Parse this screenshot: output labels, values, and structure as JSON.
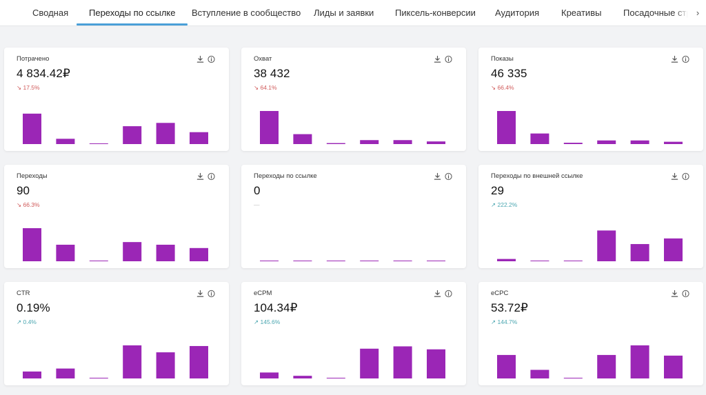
{
  "tabs": [
    {
      "label": "Сводная",
      "active": false
    },
    {
      "label": "Переходы по ссылке",
      "active": true
    },
    {
      "label": "Вступление в сообщество",
      "active": false
    },
    {
      "label": "Лиды и заявки",
      "active": false
    },
    {
      "label": "Пиксель-конверсии",
      "active": false
    },
    {
      "label": "Аудитория",
      "active": false
    },
    {
      "label": "Креативы",
      "active": false
    },
    {
      "label": "Посадочные стра",
      "active": false
    }
  ],
  "tab_next_glyph": "›",
  "colors": {
    "bar": "#9b26b6",
    "active_tab_underline": "#4a9fd8",
    "delta_down": "#d05a5a",
    "delta_up": "#4aa6b0"
  },
  "cards": [
    {
      "title": "Потрачено",
      "value": "4 834.42₽",
      "delta": "↘ 17.5%",
      "trend": "down",
      "bar_levels": [
        0.92,
        0.16,
        0.02,
        0.54,
        0.64,
        0.36
      ]
    },
    {
      "title": "Охват",
      "value": "38 432",
      "delta": "↘ 64.1%",
      "trend": "down",
      "bar_levels": [
        1.0,
        0.3,
        0.03,
        0.12,
        0.12,
        0.08
      ]
    },
    {
      "title": "Показы",
      "value": "46 335",
      "delta": "↘ 66.4%",
      "trend": "down",
      "bar_levels": [
        1.0,
        0.32,
        0.04,
        0.11,
        0.11,
        0.07
      ]
    },
    {
      "title": "Переходы",
      "value": "90",
      "delta": "↘ 66.3%",
      "trend": "down",
      "bar_levels": [
        1.0,
        0.5,
        0.02,
        0.58,
        0.5,
        0.4
      ]
    },
    {
      "title": "Переходы по ссылке",
      "value": "0",
      "delta": "—",
      "trend": "none",
      "bar_levels": [
        0.02,
        0.02,
        0.02,
        0.02,
        0.02,
        0.02
      ]
    },
    {
      "title": "Переходы по внешней ссылке",
      "value": "29",
      "delta": "↗ 222.2%",
      "trend": "up",
      "bar_levels": [
        0.07,
        0.02,
        0.02,
        0.93,
        0.52,
        0.69
      ]
    },
    {
      "title": "CTR",
      "value": "0.19%",
      "delta": "↗ 0.4%",
      "trend": "up",
      "bar_levels": [
        0.21,
        0.3,
        0.02,
        1.0,
        0.79,
        0.98
      ]
    },
    {
      "title": "eCPM",
      "value": "104.34₽",
      "delta": "↗ 145.6%",
      "trend": "up",
      "bar_levels": [
        0.18,
        0.08,
        0.02,
        0.9,
        0.97,
        0.88
      ]
    },
    {
      "title": "eCPC",
      "value": "53.72₽",
      "delta": "↗ 144.7%",
      "trend": "up",
      "bar_levels": [
        0.71,
        0.26,
        0.02,
        0.71,
        1.0,
        0.69
      ]
    }
  ]
}
